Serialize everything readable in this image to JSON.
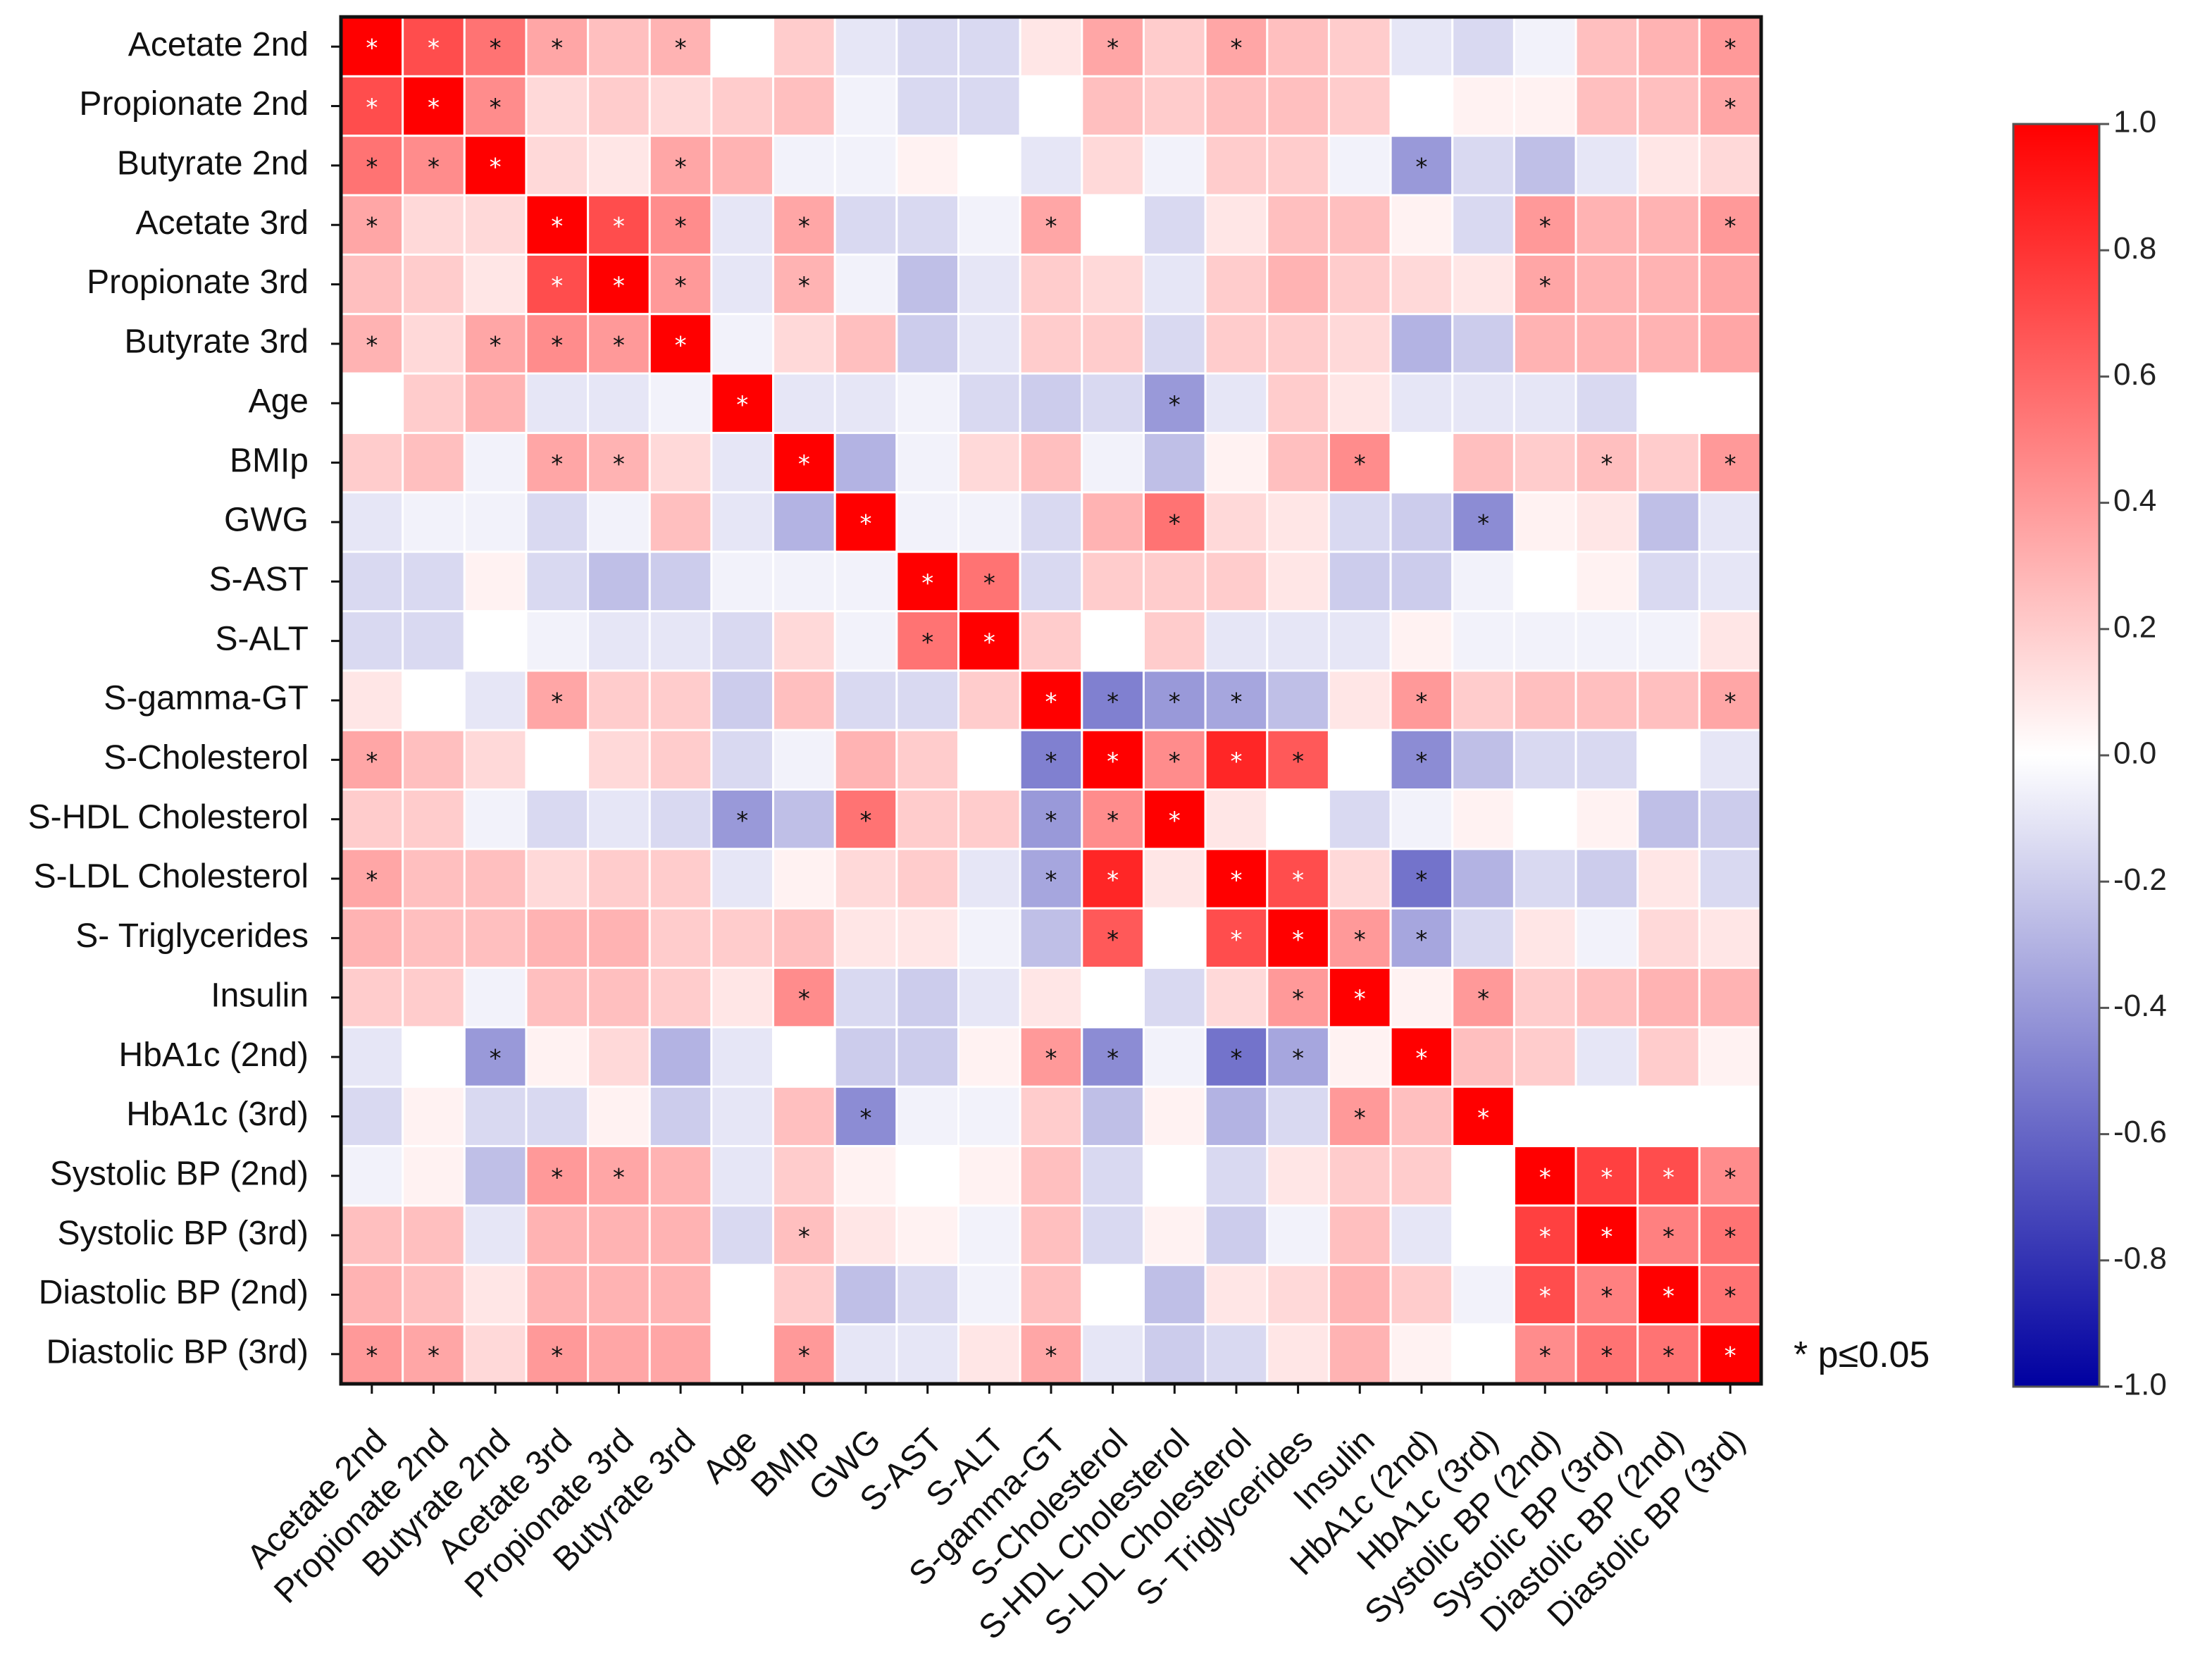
{
  "chart_data": {
    "type": "heatmap",
    "title": "",
    "labels": [
      "Acetate 2nd",
      "Propionate 2nd",
      "Butyrate 2nd",
      "Acetate 3rd",
      "Propionate 3rd",
      "Butyrate 3rd",
      "Age",
      "BMIp",
      "GWG",
      "S-AST",
      "S-ALT",
      "S-gamma-GT",
      "S-Cholesterol",
      "S-HDL Cholesterol",
      "S-LDL Cholesterol",
      "S- Triglycerides",
      "Insulin",
      "HbA1c (2nd)",
      "HbA1c (3rd)",
      "Systolic BP (2nd)",
      "Systolic BP (3rd)",
      "Diastolic BP (2nd)",
      "Diastolic BP (3rd)"
    ],
    "values": [
      [
        1.0,
        0.7,
        0.55,
        0.35,
        0.25,
        0.3,
        0.0,
        0.2,
        -0.1,
        -0.15,
        -0.15,
        0.1,
        0.35,
        0.2,
        0.35,
        0.25,
        0.2,
        -0.1,
        -0.15,
        -0.05,
        0.25,
        0.3,
        0.4
      ],
      [
        0.7,
        1.0,
        0.45,
        0.15,
        0.2,
        0.15,
        0.2,
        0.25,
        -0.05,
        -0.15,
        -0.15,
        0.0,
        0.25,
        0.2,
        0.25,
        0.25,
        0.2,
        0.0,
        0.05,
        0.05,
        0.25,
        0.25,
        0.35
      ],
      [
        0.55,
        0.45,
        1.0,
        0.15,
        0.1,
        0.35,
        0.3,
        -0.05,
        -0.05,
        0.05,
        0.0,
        -0.1,
        0.15,
        -0.05,
        0.2,
        0.2,
        -0.05,
        -0.4,
        -0.15,
        -0.25,
        -0.1,
        0.1,
        0.15
      ],
      [
        0.35,
        0.15,
        0.15,
        1.0,
        0.7,
        0.45,
        -0.1,
        0.35,
        -0.15,
        -0.15,
        -0.05,
        0.35,
        0.0,
        -0.15,
        0.1,
        0.25,
        0.25,
        0.05,
        -0.15,
        0.4,
        0.3,
        0.3,
        0.4
      ],
      [
        0.25,
        0.2,
        0.1,
        0.7,
        1.0,
        0.4,
        -0.1,
        0.3,
        -0.05,
        -0.25,
        -0.1,
        0.2,
        0.15,
        -0.1,
        0.2,
        0.3,
        0.2,
        0.15,
        0.1,
        0.35,
        0.3,
        0.3,
        0.35
      ],
      [
        0.3,
        0.15,
        0.35,
        0.45,
        0.4,
        1.0,
        -0.05,
        0.15,
        0.25,
        -0.2,
        -0.1,
        0.2,
        0.2,
        -0.15,
        0.2,
        0.2,
        0.15,
        -0.3,
        -0.2,
        0.3,
        0.3,
        0.3,
        0.35
      ],
      [
        0.0,
        0.2,
        0.3,
        -0.1,
        -0.1,
        -0.05,
        1.0,
        -0.1,
        -0.1,
        -0.05,
        -0.15,
        -0.2,
        -0.15,
        -0.4,
        -0.1,
        0.2,
        0.1,
        -0.1,
        -0.1,
        -0.1,
        -0.15,
        0.0,
        0.0
      ],
      [
        0.2,
        0.25,
        -0.05,
        0.35,
        0.3,
        0.15,
        -0.1,
        1.0,
        -0.3,
        -0.05,
        0.15,
        0.25,
        -0.05,
        -0.25,
        0.05,
        0.25,
        0.45,
        0.0,
        0.25,
        0.2,
        0.25,
        0.2,
        0.4
      ],
      [
        -0.1,
        -0.05,
        -0.05,
        -0.15,
        -0.05,
        0.25,
        -0.1,
        -0.3,
        1.0,
        -0.05,
        -0.05,
        -0.15,
        0.3,
        0.55,
        0.15,
        0.1,
        -0.15,
        -0.2,
        -0.45,
        0.05,
        0.1,
        -0.25,
        -0.1
      ],
      [
        -0.15,
        -0.15,
        0.05,
        -0.15,
        -0.25,
        -0.2,
        -0.05,
        -0.05,
        -0.05,
        1.0,
        0.55,
        -0.15,
        0.2,
        0.2,
        0.2,
        0.1,
        -0.2,
        -0.2,
        -0.05,
        0.0,
        0.05,
        -0.15,
        -0.1
      ],
      [
        -0.15,
        -0.15,
        0.0,
        -0.05,
        -0.1,
        -0.1,
        -0.15,
        0.15,
        -0.05,
        0.55,
        1.0,
        0.2,
        0.0,
        0.2,
        -0.1,
        -0.1,
        -0.1,
        0.05,
        -0.05,
        -0.05,
        -0.05,
        -0.05,
        0.1
      ],
      [
        0.1,
        0.0,
        -0.1,
        0.35,
        0.2,
        0.2,
        -0.2,
        0.25,
        -0.15,
        -0.15,
        0.2,
        1.0,
        -0.5,
        -0.4,
        -0.35,
        -0.25,
        0.1,
        0.4,
        0.2,
        0.25,
        0.25,
        0.25,
        0.35
      ],
      [
        0.35,
        0.25,
        0.15,
        0.0,
        0.15,
        0.2,
        -0.15,
        -0.05,
        0.3,
        0.2,
        0.0,
        -0.5,
        1.0,
        0.45,
        0.85,
        0.65,
        0.0,
        -0.45,
        -0.25,
        -0.15,
        -0.15,
        0.0,
        -0.1
      ],
      [
        0.2,
        0.2,
        -0.05,
        -0.15,
        -0.1,
        -0.15,
        -0.4,
        -0.25,
        0.55,
        0.2,
        0.2,
        -0.4,
        0.45,
        1.0,
        0.1,
        0.0,
        -0.15,
        -0.05,
        0.05,
        0.0,
        0.05,
        -0.25,
        -0.2
      ],
      [
        0.35,
        0.25,
        0.25,
        0.15,
        0.2,
        0.2,
        -0.1,
        0.05,
        0.15,
        0.2,
        -0.1,
        -0.35,
        0.85,
        0.1,
        1.0,
        0.7,
        0.15,
        -0.55,
        -0.3,
        -0.15,
        -0.2,
        0.1,
        -0.15
      ],
      [
        0.3,
        0.25,
        0.25,
        0.3,
        0.3,
        0.2,
        0.2,
        0.25,
        0.1,
        0.1,
        -0.05,
        -0.25,
        0.65,
        0.0,
        0.7,
        1.0,
        0.4,
        -0.35,
        -0.15,
        0.1,
        -0.05,
        0.15,
        0.1
      ],
      [
        0.2,
        0.2,
        -0.05,
        0.25,
        0.25,
        0.2,
        0.1,
        0.45,
        -0.15,
        -0.2,
        -0.1,
        0.1,
        0.0,
        -0.15,
        0.15,
        0.4,
        1.0,
        0.05,
        0.4,
        0.2,
        0.25,
        0.3,
        0.3
      ],
      [
        -0.1,
        0.0,
        -0.4,
        0.05,
        0.15,
        -0.3,
        -0.1,
        0.0,
        -0.2,
        -0.2,
        0.05,
        0.4,
        -0.45,
        -0.05,
        -0.55,
        -0.35,
        0.05,
        1.0,
        0.25,
        0.2,
        -0.1,
        0.2,
        0.05
      ],
      [
        -0.15,
        0.05,
        -0.15,
        -0.15,
        0.05,
        -0.2,
        -0.1,
        0.25,
        -0.45,
        -0.05,
        -0.05,
        0.2,
        -0.25,
        0.05,
        -0.3,
        -0.15,
        0.4,
        0.25,
        1.0,
        0.0,
        0.0,
        0.0,
        0.0
      ],
      [
        -0.05,
        0.05,
        -0.25,
        0.4,
        0.35,
        0.3,
        -0.1,
        0.2,
        0.05,
        0.0,
        0.05,
        0.25,
        -0.15,
        0.0,
        -0.15,
        0.1,
        0.2,
        0.2,
        0.0,
        1.0,
        0.75,
        0.7,
        0.45
      ],
      [
        0.25,
        0.25,
        -0.1,
        0.3,
        0.3,
        0.3,
        -0.15,
        0.25,
        0.1,
        0.05,
        -0.05,
        0.25,
        -0.15,
        0.05,
        -0.2,
        -0.05,
        0.25,
        -0.1,
        0.0,
        0.75,
        1.0,
        0.5,
        0.55
      ],
      [
        0.3,
        0.25,
        0.1,
        0.3,
        0.3,
        0.3,
        0.0,
        0.2,
        -0.25,
        -0.15,
        -0.05,
        0.25,
        0.0,
        -0.25,
        0.1,
        0.15,
        0.3,
        0.2,
        -0.05,
        0.7,
        0.5,
        1.0,
        0.55
      ],
      [
        0.4,
        0.35,
        0.15,
        0.4,
        0.35,
        0.35,
        0.0,
        0.4,
        -0.1,
        -0.1,
        0.1,
        0.35,
        -0.1,
        -0.2,
        -0.15,
        0.1,
        0.3,
        0.05,
        0.0,
        0.45,
        0.55,
        0.55,
        1.0
      ]
    ],
    "significant": [
      [
        0,
        0
      ],
      [
        0,
        1
      ],
      [
        0,
        2
      ],
      [
        0,
        3
      ],
      [
        0,
        5
      ],
      [
        0,
        12
      ],
      [
        0,
        14
      ],
      [
        0,
        22
      ],
      [
        1,
        0
      ],
      [
        1,
        1
      ],
      [
        1,
        2
      ],
      [
        1,
        22
      ],
      [
        2,
        0
      ],
      [
        2,
        1
      ],
      [
        2,
        2
      ],
      [
        2,
        5
      ],
      [
        2,
        17
      ],
      [
        3,
        0
      ],
      [
        3,
        3
      ],
      [
        3,
        4
      ],
      [
        3,
        5
      ],
      [
        3,
        7
      ],
      [
        3,
        11
      ],
      [
        3,
        19
      ],
      [
        3,
        22
      ],
      [
        4,
        3
      ],
      [
        4,
        4
      ],
      [
        4,
        5
      ],
      [
        4,
        7
      ],
      [
        4,
        19
      ],
      [
        5,
        0
      ],
      [
        5,
        2
      ],
      [
        5,
        3
      ],
      [
        5,
        4
      ],
      [
        5,
        5
      ],
      [
        6,
        6
      ],
      [
        6,
        13
      ],
      [
        7,
        3
      ],
      [
        7,
        4
      ],
      [
        7,
        7
      ],
      [
        7,
        16
      ],
      [
        7,
        20
      ],
      [
        7,
        22
      ],
      [
        8,
        8
      ],
      [
        8,
        13
      ],
      [
        8,
        18
      ],
      [
        9,
        9
      ],
      [
        9,
        10
      ],
      [
        10,
        9
      ],
      [
        10,
        10
      ],
      [
        11,
        3
      ],
      [
        11,
        11
      ],
      [
        11,
        12
      ],
      [
        11,
        13
      ],
      [
        11,
        14
      ],
      [
        11,
        17
      ],
      [
        11,
        22
      ],
      [
        12,
        0
      ],
      [
        12,
        11
      ],
      [
        12,
        12
      ],
      [
        12,
        13
      ],
      [
        12,
        14
      ],
      [
        12,
        15
      ],
      [
        12,
        17
      ],
      [
        13,
        6
      ],
      [
        13,
        8
      ],
      [
        13,
        11
      ],
      [
        13,
        12
      ],
      [
        13,
        13
      ],
      [
        14,
        0
      ],
      [
        14,
        11
      ],
      [
        14,
        12
      ],
      [
        14,
        14
      ],
      [
        14,
        15
      ],
      [
        14,
        17
      ],
      [
        15,
        12
      ],
      [
        15,
        14
      ],
      [
        15,
        15
      ],
      [
        15,
        16
      ],
      [
        15,
        17
      ],
      [
        16,
        7
      ],
      [
        16,
        15
      ],
      [
        16,
        16
      ],
      [
        16,
        18
      ],
      [
        17,
        2
      ],
      [
        17,
        11
      ],
      [
        17,
        12
      ],
      [
        17,
        14
      ],
      [
        17,
        15
      ],
      [
        17,
        17
      ],
      [
        18,
        8
      ],
      [
        18,
        16
      ],
      [
        18,
        18
      ],
      [
        19,
        3
      ],
      [
        19,
        4
      ],
      [
        19,
        19
      ],
      [
        19,
        20
      ],
      [
        19,
        21
      ],
      [
        19,
        22
      ],
      [
        20,
        7
      ],
      [
        20,
        19
      ],
      [
        20,
        20
      ],
      [
        20,
        21
      ],
      [
        20,
        22
      ],
      [
        21,
        19
      ],
      [
        21,
        20
      ],
      [
        21,
        21
      ],
      [
        21,
        22
      ],
      [
        22,
        0
      ],
      [
        22,
        1
      ],
      [
        22,
        3
      ],
      [
        22,
        7
      ],
      [
        22,
        11
      ],
      [
        22,
        19
      ],
      [
        22,
        20
      ],
      [
        22,
        21
      ],
      [
        22,
        22
      ]
    ],
    "color_scale": {
      "min": -1.0,
      "max": 1.0,
      "low_color": "#0000a0",
      "mid_color": "#ffffff",
      "high_color": "#ff0000",
      "ticks": [
        "1.0",
        "0.8",
        "0.6",
        "0.4",
        "0.2",
        "0.0",
        "-0.2",
        "-0.4",
        "-0.6",
        "-0.8",
        "-1.0"
      ]
    },
    "annotation": "* p≤0.05",
    "legend_position": "right"
  }
}
